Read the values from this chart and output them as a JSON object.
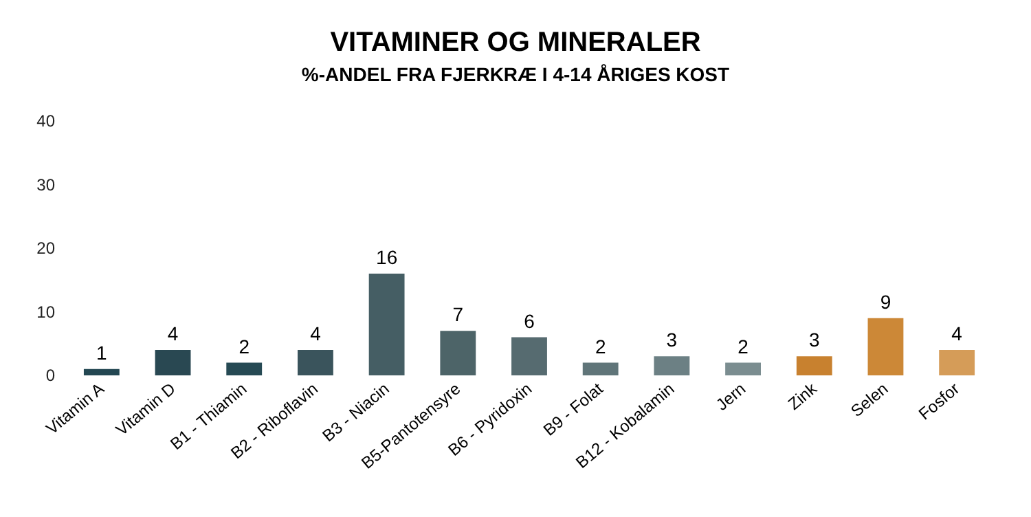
{
  "chart_data": {
    "type": "bar",
    "title": "VITAMINER OG MINERALER",
    "subtitle": "%-ANDEL FRA FJERKRÆ I 4-14 ÅRIGES KOST",
    "categories": [
      "Vitamin A",
      "Vitamin D",
      "B1 - Thiamin",
      "B2 - Riboflavin",
      "B3 - Niacin",
      "B5-Pantotensyre",
      "B6 - Pyridoxin",
      "B9 - Folat",
      "B12 - Kobalamin",
      "Jern",
      "Zink",
      "Selen",
      "Fosfor"
    ],
    "values": [
      1,
      4,
      2,
      4,
      16,
      7,
      6,
      2,
      3,
      2,
      3,
      9,
      4
    ],
    "colors": [
      "#234752",
      "#294852",
      "#264a54",
      "#3a545c",
      "#455e64",
      "#4d6468",
      "#566b70",
      "#607579",
      "#6c8084",
      "#7b8d90",
      "#c8812f",
      "#cc8837",
      "#d59c58"
    ],
    "ylim": [
      0,
      40
    ],
    "yticks": [
      0,
      10,
      20,
      30,
      40
    ],
    "grid": false,
    "data_labels": true
  }
}
